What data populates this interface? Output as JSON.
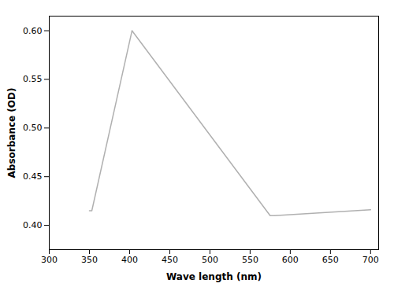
{
  "chart_data": {
    "type": "line",
    "x": [
      350,
      353,
      403,
      575,
      580,
      700
    ],
    "values": [
      0.415,
      0.415,
      0.6,
      0.41,
      0.41,
      0.416
    ],
    "color": "#b0b0b0",
    "xlabel": "Wave length (nm)",
    "ylabel": "Absorbance (OD)",
    "xlim": [
      300,
      710
    ],
    "ylim": [
      0.375,
      0.615
    ],
    "xticks": [
      300,
      350,
      400,
      450,
      500,
      550,
      600,
      650,
      700
    ],
    "yticks": [
      {
        "value": 0.4,
        "label": "0.40"
      },
      {
        "value": 0.45,
        "label": "0.45"
      },
      {
        "value": 0.5,
        "label": "0.50"
      },
      {
        "value": 0.55,
        "label": "0.55"
      },
      {
        "value": 0.6,
        "label": "0.60"
      }
    ]
  }
}
